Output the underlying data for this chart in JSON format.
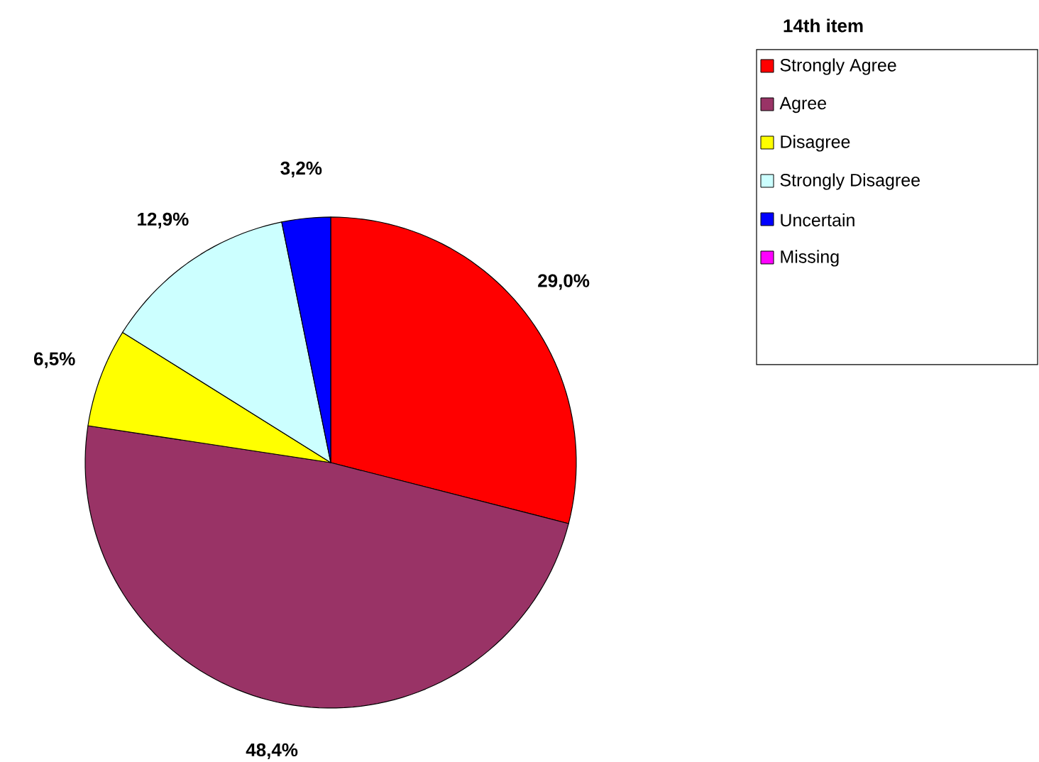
{
  "chart_data": {
    "type": "pie",
    "legend_title": "14th item",
    "legend": "top right",
    "categories": [
      "Strongly Agree",
      "Agree",
      "Disagree",
      "Strongly Disagree",
      "Uncertain",
      "Missing"
    ],
    "values": [
      29.0,
      48.4,
      6.5,
      12.9,
      3.2,
      0
    ],
    "colors": [
      "#ff0000",
      "#993366",
      "#ffff00",
      "#ccffff",
      "#0000ff",
      "#ff00ff"
    ],
    "value_labels": [
      "29,0%",
      "48,4%",
      "6,5%",
      "12,9%",
      "3,2%",
      null
    ]
  }
}
